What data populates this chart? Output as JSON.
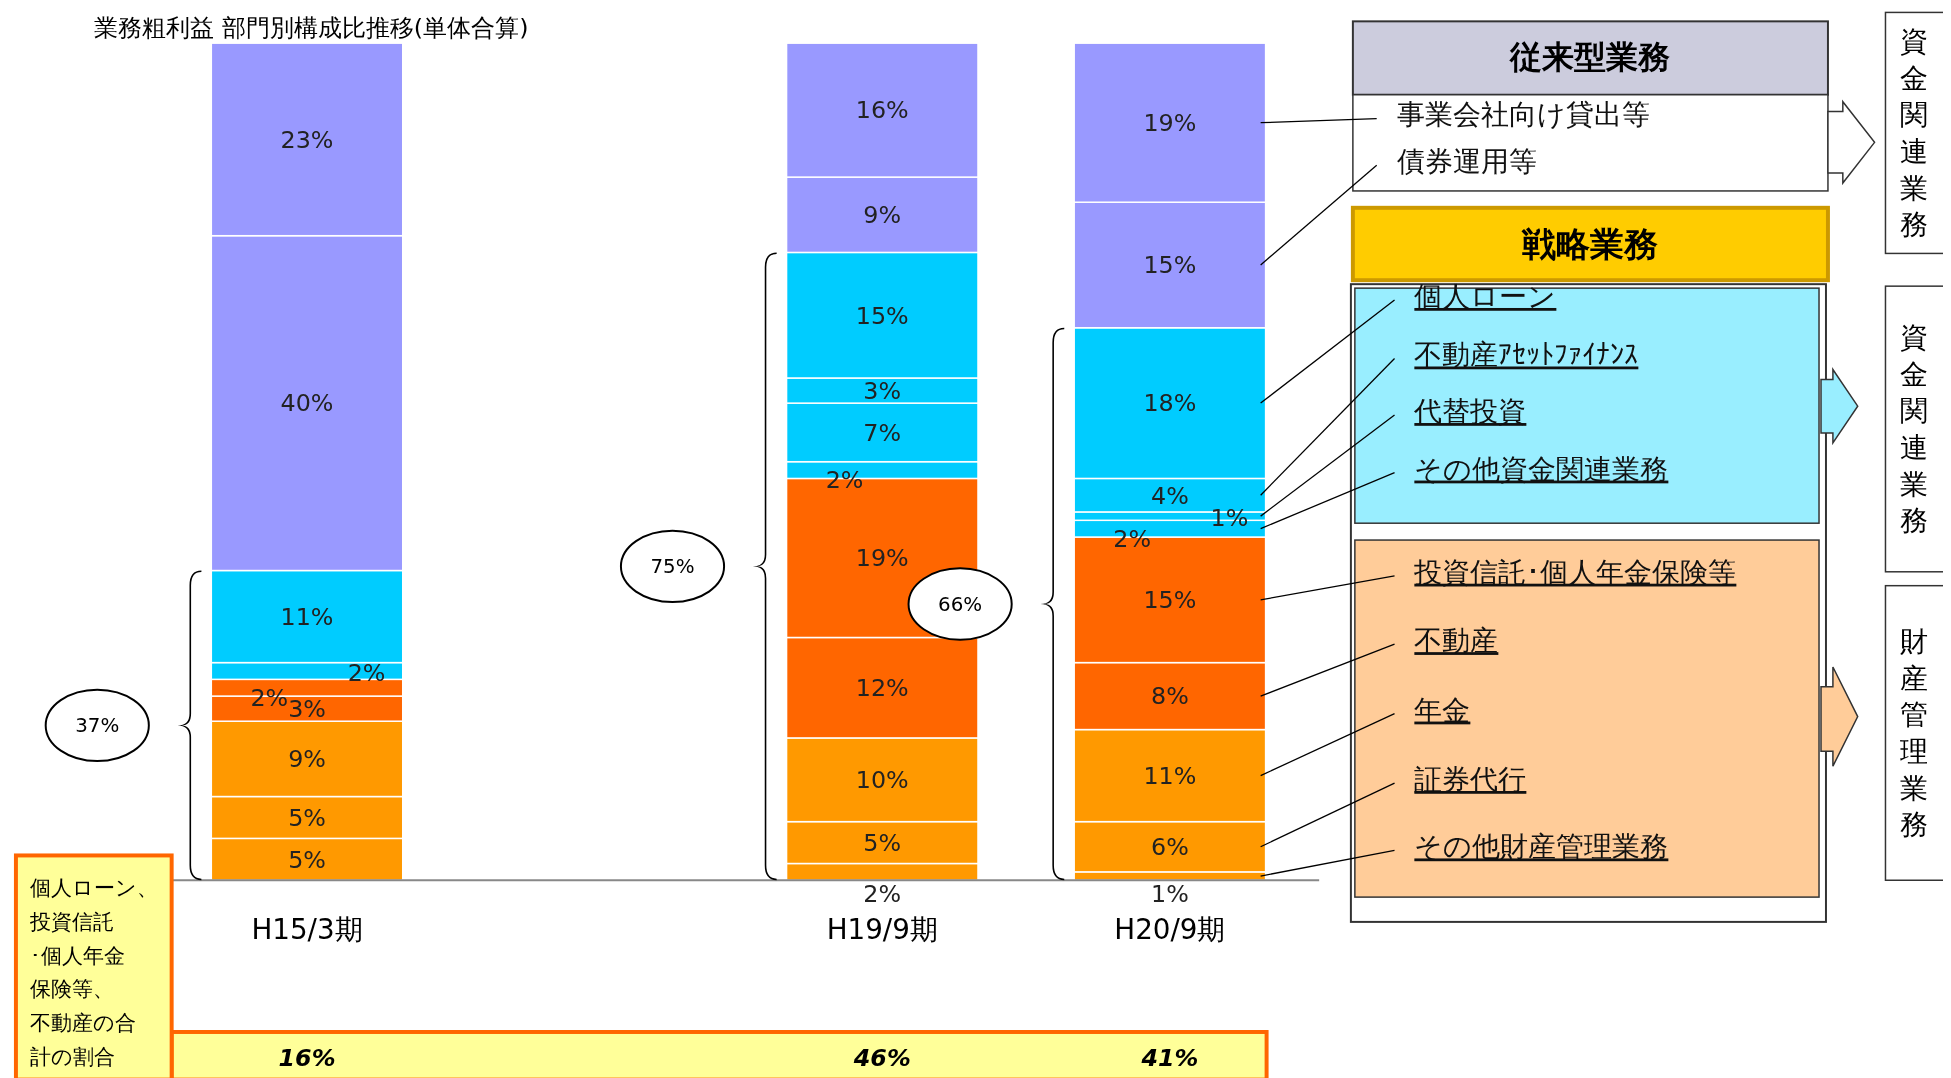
{
  "chart_data": {
    "type": "bar",
    "stacked": true,
    "title": "業務粗利益 部門別構成比推移(単体合算)",
    "categories": [
      "H15/3期",
      "H19/9期",
      "H20/9期"
    ],
    "legend": "right",
    "series": [
      {
        "name": "その他財産管理業務",
        "color": "#ff9900",
        "values": [
          5,
          2,
          1
        ],
        "value_labels": [
          "5%",
          "2%",
          "1%"
        ]
      },
      {
        "name": "証券代行",
        "color": "#ff9900",
        "values": [
          5,
          5,
          6
        ],
        "value_labels": [
          "5%",
          "5%",
          "6%"
        ]
      },
      {
        "name": "年金",
        "color": "#ff9900",
        "values": [
          9,
          10,
          11
        ],
        "value_labels": [
          "9%",
          "10%",
          "11%"
        ]
      },
      {
        "name": "不動産",
        "color": "#ff6600",
        "values": [
          3,
          12,
          8
        ],
        "value_labels": [
          "3%",
          "12%",
          "8%"
        ]
      },
      {
        "name": "投資信託･個人年金保険等",
        "color": "#ff6600",
        "values": [
          2,
          19,
          15
        ],
        "value_labels": [
          "2%",
          "19%",
          "15%"
        ]
      },
      {
        "name": "その他資金関連業務",
        "color": "#00ccff",
        "values": [
          2,
          2,
          2
        ],
        "value_labels": [
          "2%",
          "2%",
          "2%"
        ]
      },
      {
        "name": "代替投資",
        "color": "#00ccff",
        "values": [
          null,
          7,
          1
        ],
        "value_labels": [
          null,
          "7%",
          "1%"
        ]
      },
      {
        "name": "不動産ｱｾｯﾄﾌｧｲﾅﾝｽ",
        "color": "#00ccff",
        "values": [
          null,
          3,
          4
        ],
        "value_labels": [
          null,
          "3%",
          "4%"
        ]
      },
      {
        "name": "個人ローン",
        "color": "#00ccff",
        "values": [
          11,
          15,
          18
        ],
        "value_labels": [
          "11%",
          "15%",
          "18%"
        ]
      },
      {
        "name": "債券運用等",
        "color": "#9999ff",
        "values": [
          40,
          9,
          15
        ],
        "value_labels": [
          "40%",
          "9%",
          "15%"
        ]
      },
      {
        "name": "事業会社向け貸出等",
        "color": "#9999ff",
        "values": [
          23,
          16,
          19
        ],
        "value_labels": [
          "23%",
          "16%",
          "19%"
        ]
      }
    ],
    "annotations": [
      "37%",
      "75%",
      "66%",
      "個人ローン、投資信託･個人年金保険等、不動産の合計の割合",
      "16%",
      "46%",
      "41%",
      "従来型業務",
      "戦略業務",
      "資金関連業務",
      "資金関連業務",
      "財産管理業務"
    ]
  }
}
